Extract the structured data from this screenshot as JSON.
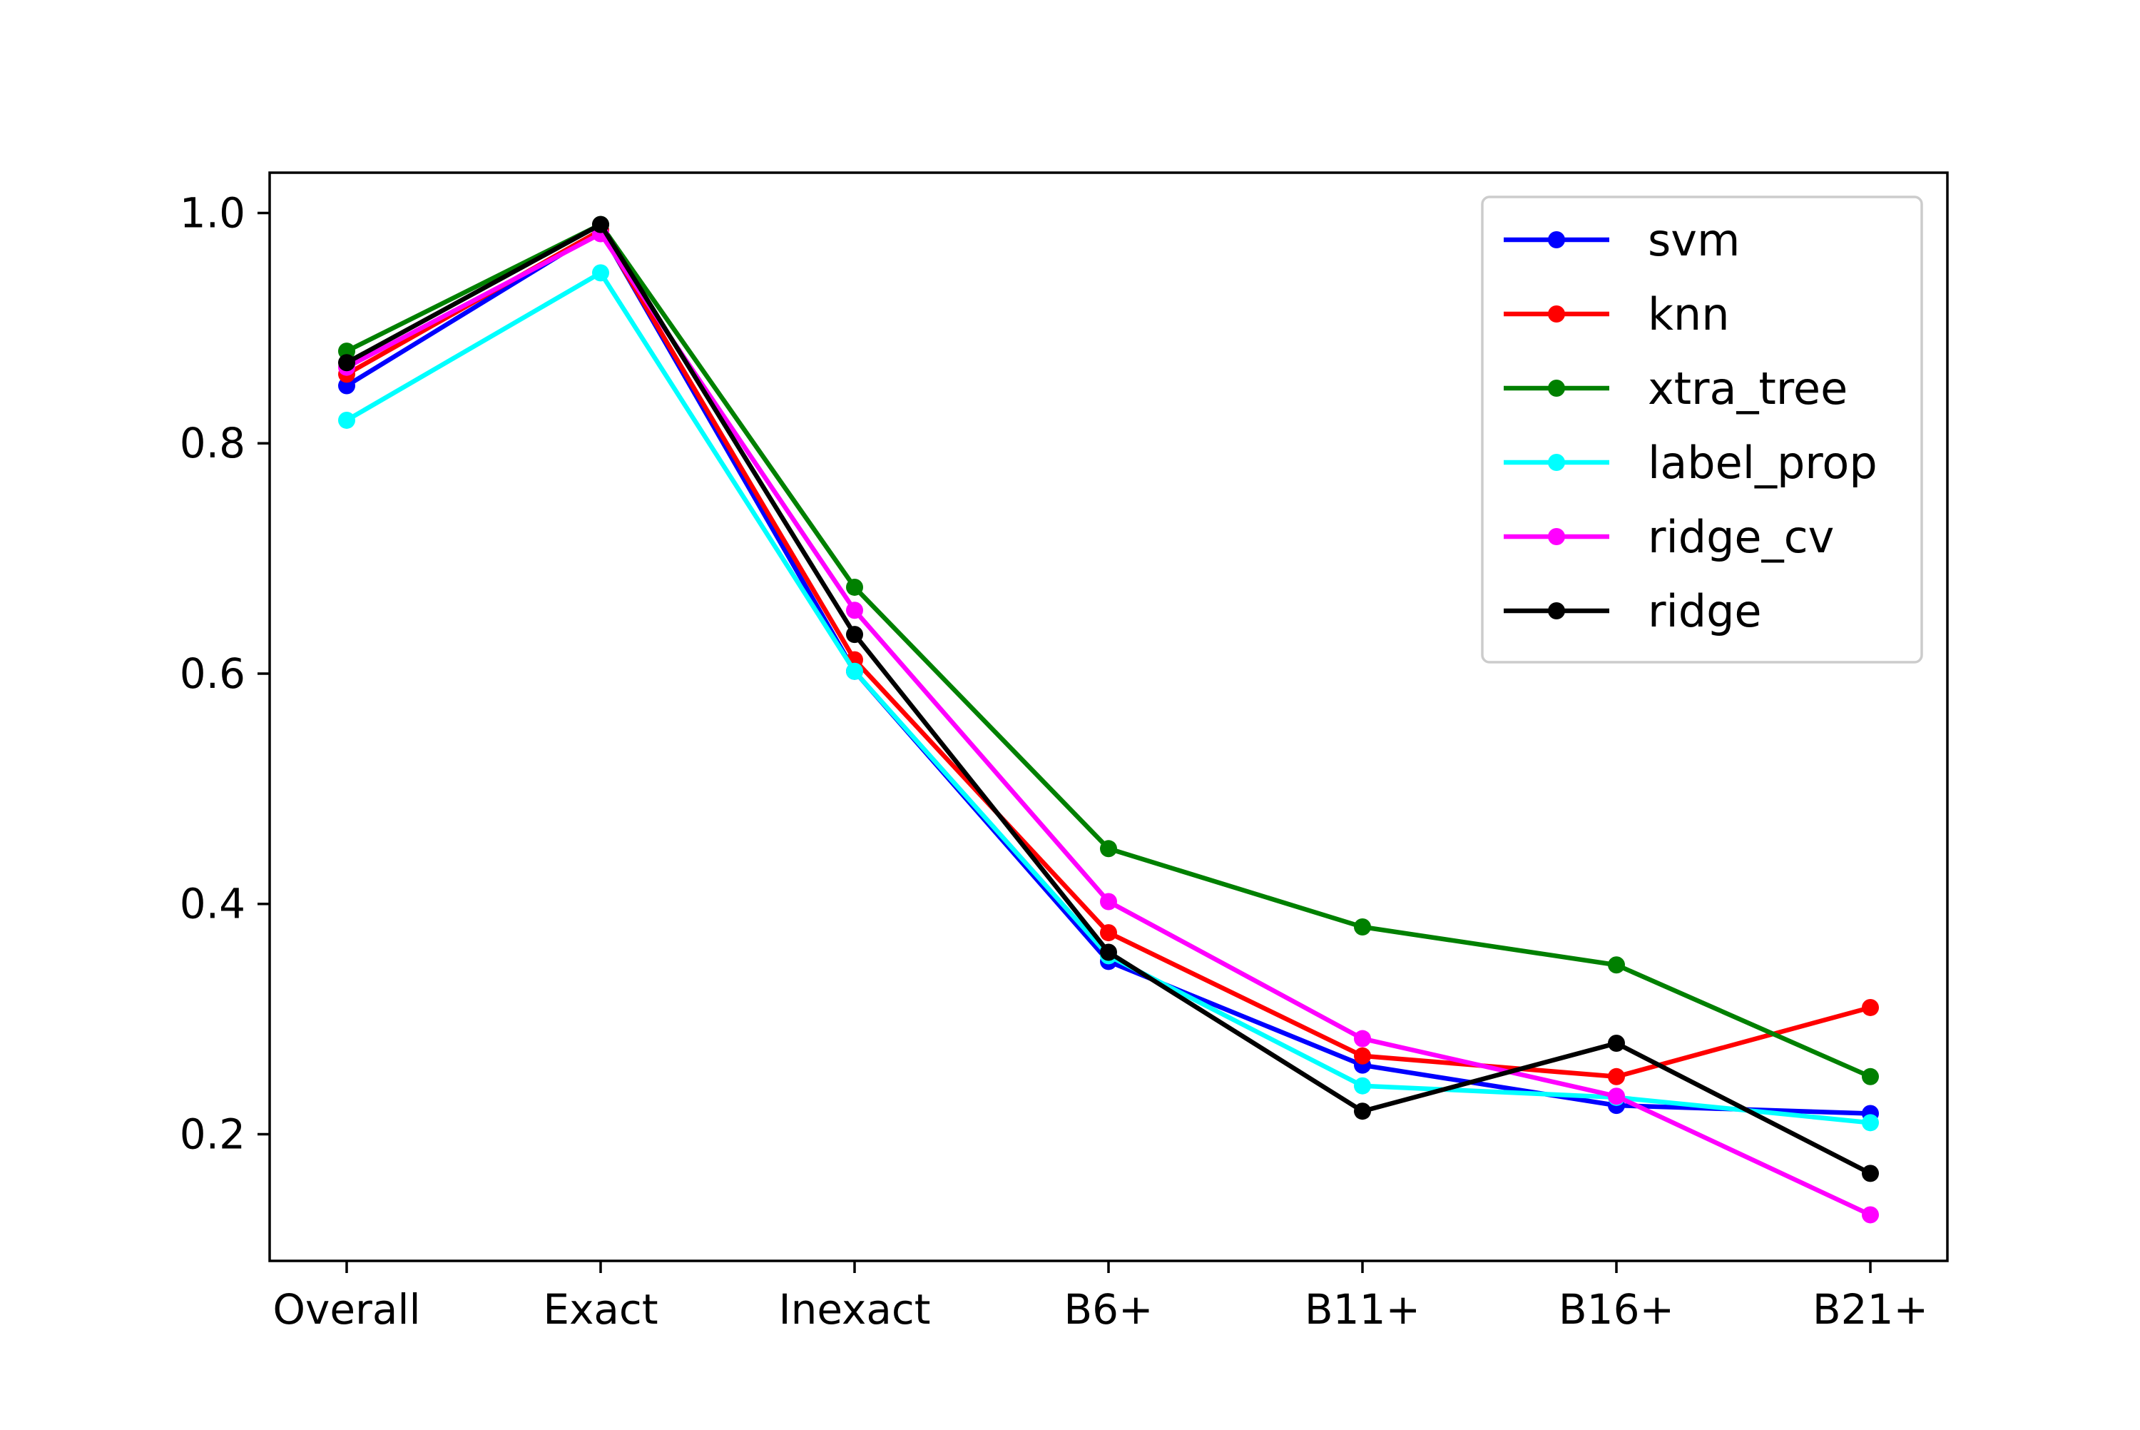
{
  "chart_data": {
    "type": "line",
    "title": "",
    "xlabel": "",
    "ylabel": "",
    "categories": [
      "Overall",
      "Exact",
      "Inexact",
      "B6+",
      "B11+",
      "B16+",
      "B21+"
    ],
    "ylim": [
      0.09,
      1.035
    ],
    "yticks": [
      "0.2",
      "0.4",
      "0.6",
      "0.8",
      "1.0"
    ],
    "grid": false,
    "legend_position": "upper-right",
    "series": [
      {
        "name": "svm",
        "color": "#0000ff",
        "values": [
          0.85,
          0.985,
          0.602,
          0.35,
          0.26,
          0.225,
          0.218
        ]
      },
      {
        "name": "knn",
        "color": "#ff0000",
        "values": [
          0.86,
          0.985,
          0.612,
          0.375,
          0.268,
          0.25,
          0.31
        ]
      },
      {
        "name": "xtra_tree",
        "color": "#008000",
        "values": [
          0.88,
          0.99,
          0.675,
          0.448,
          0.38,
          0.347,
          0.25
        ]
      },
      {
        "name": "label_prop",
        "color": "#00ffff",
        "values": [
          0.82,
          0.948,
          0.602,
          0.355,
          0.242,
          0.232,
          0.21
        ]
      },
      {
        "name": "ridge_cv",
        "color": "#ff00ff",
        "values": [
          0.866,
          0.982,
          0.655,
          0.402,
          0.283,
          0.233,
          0.13
        ]
      },
      {
        "name": "ridge",
        "color": "#000000",
        "values": [
          0.87,
          0.99,
          0.634,
          0.358,
          0.22,
          0.279,
          0.166
        ]
      }
    ]
  }
}
